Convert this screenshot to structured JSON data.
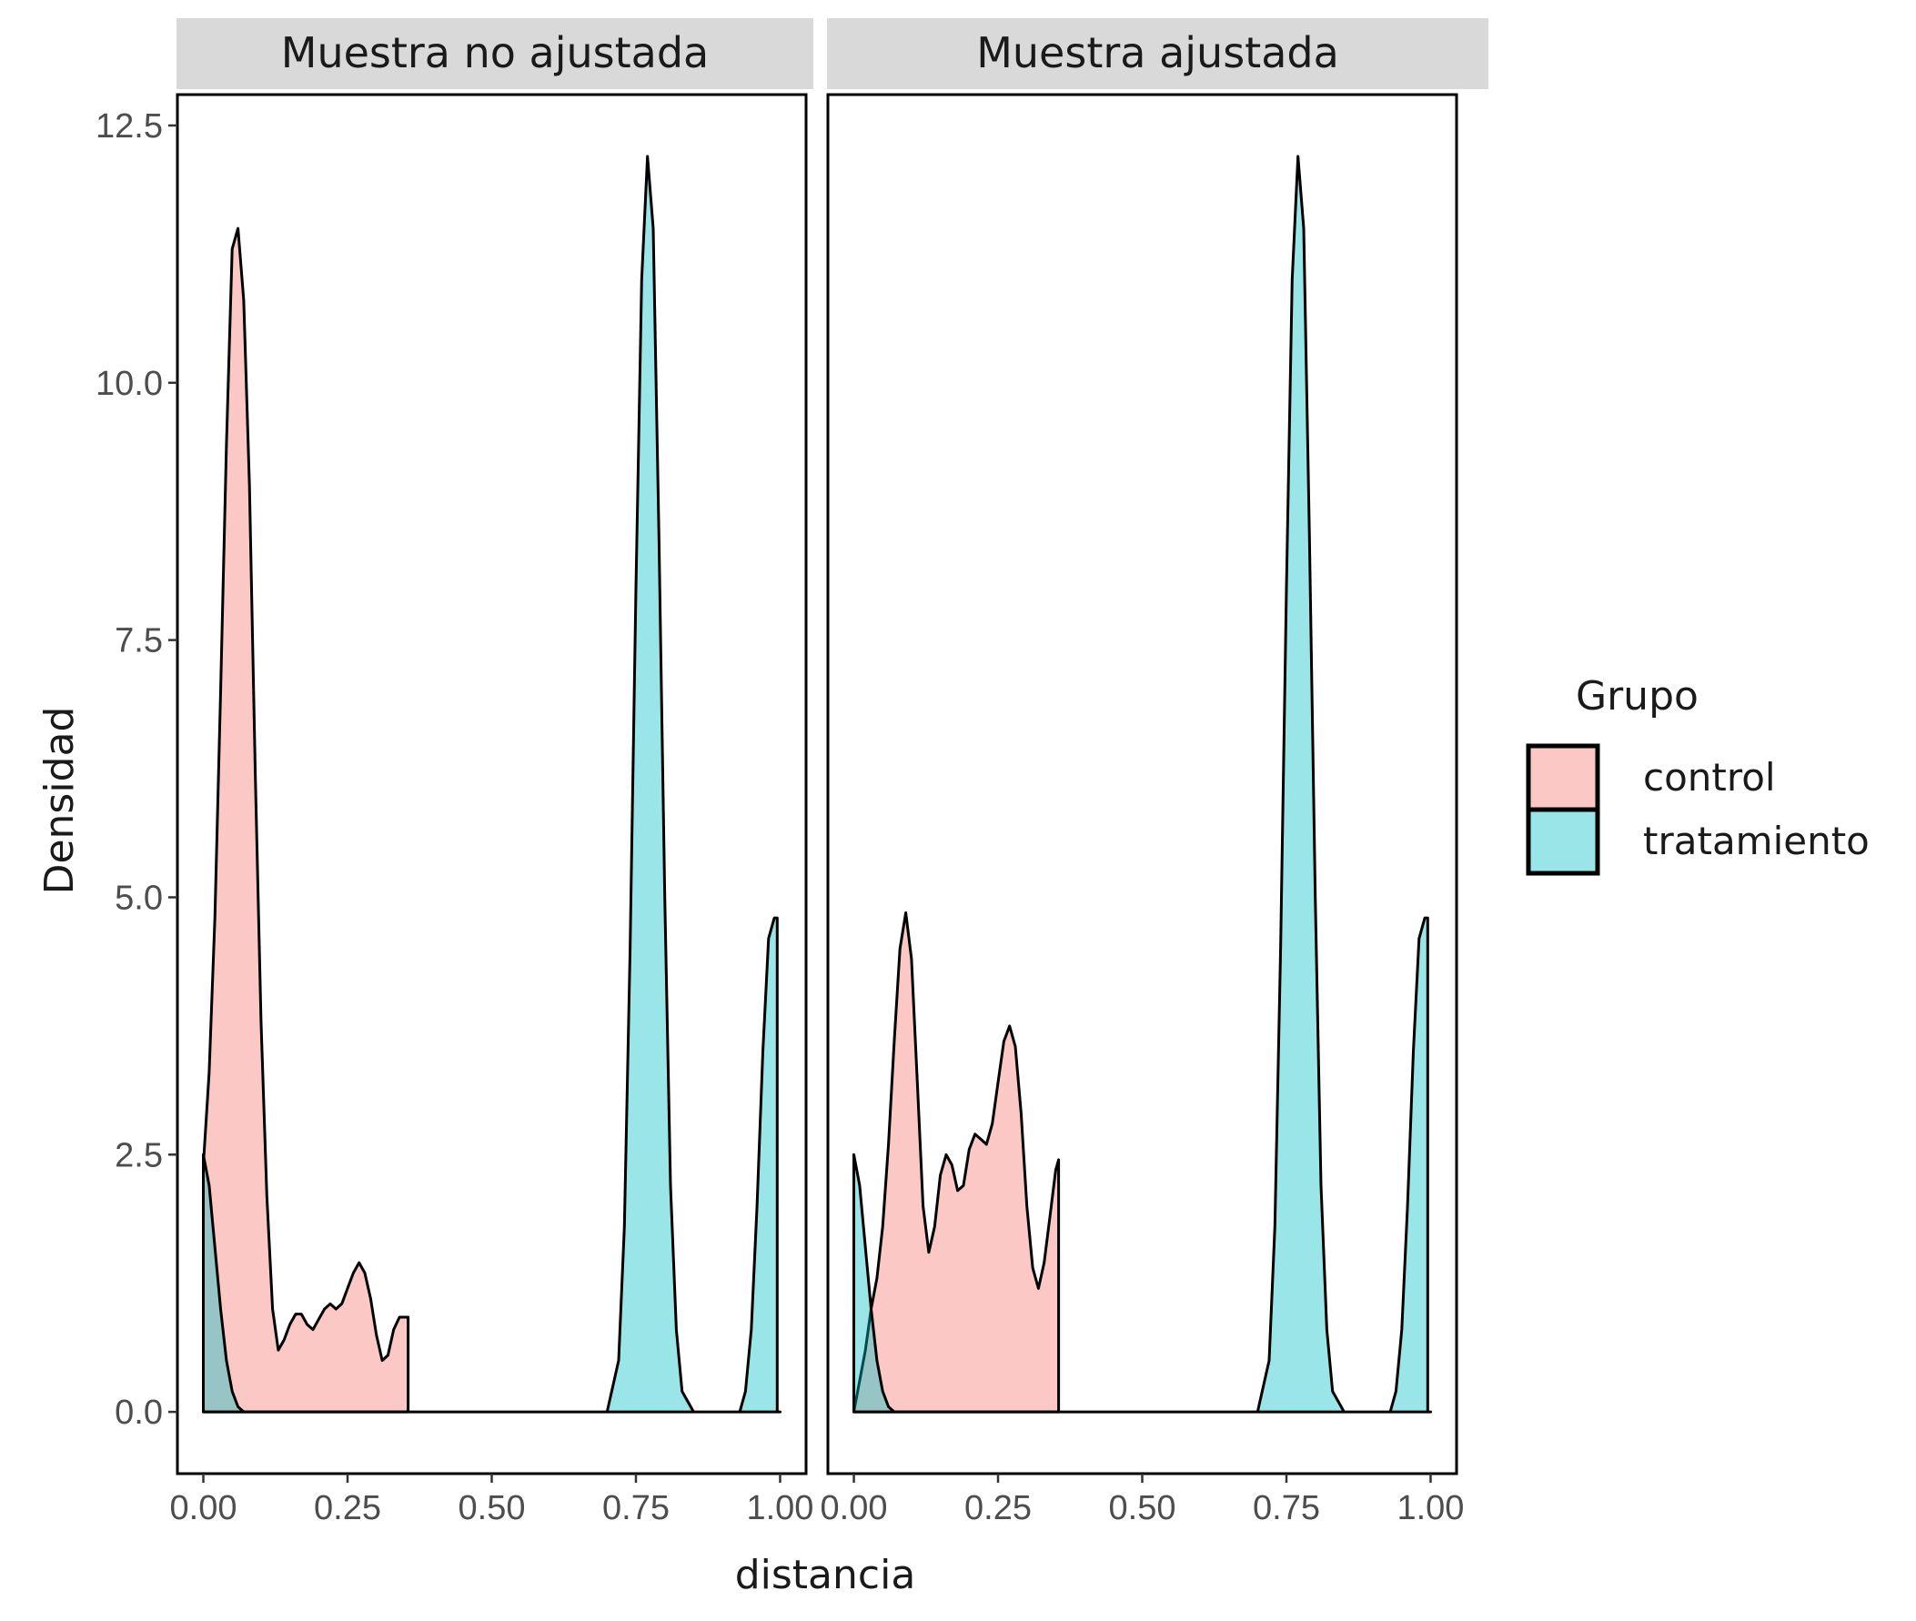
{
  "chart_data": {
    "type": "area",
    "xlabel": "distancia",
    "ylabel": "Densidad",
    "xlim": [
      0,
      1
    ],
    "ylim": [
      0,
      12.5
    ],
    "x_ticks": [
      "0.00",
      "0.25",
      "0.50",
      "0.75",
      "1.00"
    ],
    "y_ticks": [
      "0.0",
      "2.5",
      "5.0",
      "7.5",
      "10.0",
      "12.5"
    ],
    "grid": false,
    "legend": {
      "title": "Grupo",
      "position": "right",
      "entries": [
        {
          "name": "control",
          "color": "#F8766D"
        },
        {
          "name": "tratamiento",
          "color": "#00BFC4"
        }
      ]
    },
    "fill_opacity": 0.4,
    "panels": [
      {
        "title": "Muestra no ajustada",
        "series": [
          {
            "name": "control",
            "points": [
              [
                0.0,
                2.4
              ],
              [
                0.01,
                3.3
              ],
              [
                0.02,
                4.8
              ],
              [
                0.03,
                7.0
              ],
              [
                0.04,
                9.4
              ],
              [
                0.05,
                11.3
              ],
              [
                0.06,
                11.5
              ],
              [
                0.07,
                10.8
              ],
              [
                0.08,
                9.0
              ],
              [
                0.09,
                6.2
              ],
              [
                0.1,
                3.8
              ],
              [
                0.11,
                2.1
              ],
              [
                0.12,
                1.0
              ],
              [
                0.13,
                0.6
              ],
              [
                0.14,
                0.7
              ],
              [
                0.15,
                0.85
              ],
              [
                0.16,
                0.95
              ],
              [
                0.17,
                0.95
              ],
              [
                0.18,
                0.85
              ],
              [
                0.19,
                0.8
              ],
              [
                0.2,
                0.9
              ],
              [
                0.21,
                1.0
              ],
              [
                0.22,
                1.05
              ],
              [
                0.23,
                1.0
              ],
              [
                0.24,
                1.05
              ],
              [
                0.25,
                1.2
              ],
              [
                0.26,
                1.35
              ],
              [
                0.27,
                1.45
              ],
              [
                0.28,
                1.35
              ],
              [
                0.29,
                1.1
              ],
              [
                0.3,
                0.75
              ],
              [
                0.31,
                0.5
              ],
              [
                0.32,
                0.55
              ],
              [
                0.33,
                0.8
              ],
              [
                0.34,
                0.92
              ],
              [
                0.355,
                0.92
              ],
              [
                0.355,
                0.0
              ]
            ]
          },
          {
            "name": "tratamiento",
            "points": [
              [
                0.0,
                2.5
              ],
              [
                0.01,
                2.2
              ],
              [
                0.02,
                1.6
              ],
              [
                0.03,
                1.0
              ],
              [
                0.04,
                0.5
              ],
              [
                0.05,
                0.2
              ],
              [
                0.06,
                0.05
              ],
              [
                0.07,
                0.0
              ],
              [
                0.7,
                0.0
              ],
              [
                0.72,
                0.5
              ],
              [
                0.73,
                1.8
              ],
              [
                0.74,
                4.5
              ],
              [
                0.75,
                8.0
              ],
              [
                0.76,
                11.0
              ],
              [
                0.77,
                12.2
              ],
              [
                0.78,
                11.5
              ],
              [
                0.79,
                8.5
              ],
              [
                0.8,
                5.0
              ],
              [
                0.81,
                2.2
              ],
              [
                0.82,
                0.8
              ],
              [
                0.83,
                0.2
              ],
              [
                0.85,
                0.0
              ],
              [
                0.93,
                0.0
              ],
              [
                0.94,
                0.2
              ],
              [
                0.95,
                0.8
              ],
              [
                0.96,
                2.0
              ],
              [
                0.97,
                3.5
              ],
              [
                0.98,
                4.6
              ],
              [
                0.99,
                4.8
              ],
              [
                0.995,
                4.8
              ],
              [
                0.995,
                0.0
              ],
              [
                1.0,
                0.0
              ]
            ]
          }
        ]
      },
      {
        "title": "Muestra ajustada",
        "series": [
          {
            "name": "control",
            "points": [
              [
                0.0,
                0.0
              ],
              [
                0.02,
                0.6
              ],
              [
                0.03,
                1.0
              ],
              [
                0.04,
                1.3
              ],
              [
                0.05,
                1.8
              ],
              [
                0.06,
                2.6
              ],
              [
                0.07,
                3.6
              ],
              [
                0.08,
                4.5
              ],
              [
                0.09,
                4.85
              ],
              [
                0.1,
                4.4
              ],
              [
                0.11,
                3.2
              ],
              [
                0.12,
                2.0
              ],
              [
                0.13,
                1.55
              ],
              [
                0.14,
                1.8
              ],
              [
                0.15,
                2.3
              ],
              [
                0.16,
                2.5
              ],
              [
                0.17,
                2.4
              ],
              [
                0.18,
                2.15
              ],
              [
                0.19,
                2.2
              ],
              [
                0.2,
                2.55
              ],
              [
                0.21,
                2.7
              ],
              [
                0.22,
                2.65
              ],
              [
                0.23,
                2.6
              ],
              [
                0.24,
                2.8
              ],
              [
                0.25,
                3.2
              ],
              [
                0.26,
                3.6
              ],
              [
                0.27,
                3.75
              ],
              [
                0.28,
                3.55
              ],
              [
                0.29,
                2.9
              ],
              [
                0.3,
                2.0
              ],
              [
                0.31,
                1.4
              ],
              [
                0.32,
                1.2
              ],
              [
                0.33,
                1.45
              ],
              [
                0.34,
                1.9
              ],
              [
                0.35,
                2.35
              ],
              [
                0.355,
                2.45
              ],
              [
                0.355,
                0.0
              ]
            ]
          },
          {
            "name": "tratamiento",
            "points": [
              [
                0.0,
                2.5
              ],
              [
                0.01,
                2.2
              ],
              [
                0.02,
                1.6
              ],
              [
                0.03,
                1.0
              ],
              [
                0.04,
                0.5
              ],
              [
                0.05,
                0.2
              ],
              [
                0.06,
                0.05
              ],
              [
                0.07,
                0.0
              ],
              [
                0.7,
                0.0
              ],
              [
                0.72,
                0.5
              ],
              [
                0.73,
                1.8
              ],
              [
                0.74,
                4.5
              ],
              [
                0.75,
                8.0
              ],
              [
                0.76,
                11.0
              ],
              [
                0.77,
                12.2
              ],
              [
                0.78,
                11.5
              ],
              [
                0.79,
                8.5
              ],
              [
                0.8,
                5.0
              ],
              [
                0.81,
                2.2
              ],
              [
                0.82,
                0.8
              ],
              [
                0.83,
                0.2
              ],
              [
                0.85,
                0.0
              ],
              [
                0.93,
                0.0
              ],
              [
                0.94,
                0.2
              ],
              [
                0.95,
                0.8
              ],
              [
                0.96,
                2.0
              ],
              [
                0.97,
                3.5
              ],
              [
                0.98,
                4.6
              ],
              [
                0.99,
                4.8
              ],
              [
                0.995,
                4.8
              ],
              [
                0.995,
                0.0
              ],
              [
                1.0,
                0.0
              ]
            ]
          }
        ]
      }
    ]
  }
}
